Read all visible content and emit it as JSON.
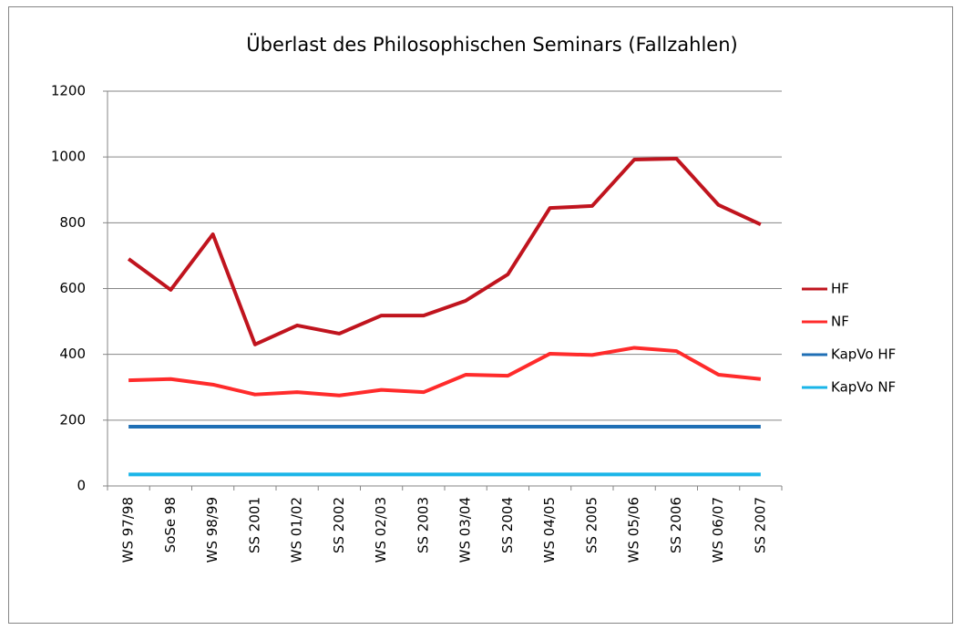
{
  "chart_data": {
    "type": "line",
    "title": "Überlast des Philosophischen  Seminars (Fallzahlen)",
    "categories": [
      "WS 97/98",
      "SoSe 98",
      "WS 98/99",
      "SS 2001",
      "WS 01/02",
      "SS 2002",
      "WS 02/03",
      "SS 2003",
      "WS 03/04",
      "SS 2004",
      "WS 04/05",
      "SS 2005",
      "WS 05/06",
      "SS 2006",
      "WS 06/07",
      "SS 2007"
    ],
    "series": [
      {
        "name": "HF",
        "color": "#c0141e",
        "values": [
          690,
          596,
          765,
          430,
          488,
          463,
          518,
          518,
          563,
          643,
          845,
          851,
          992,
          995,
          854,
          795
        ]
      },
      {
        "name": "NF",
        "color": "#ff2b2b",
        "values": [
          321,
          325,
          308,
          278,
          285,
          275,
          292,
          285,
          338,
          335,
          402,
          398,
          420,
          410,
          338,
          325
        ]
      },
      {
        "name": "KapVo HF",
        "color": "#1f6fb5",
        "values": [
          180,
          180,
          180,
          180,
          180,
          180,
          180,
          180,
          180,
          180,
          180,
          180,
          180,
          180,
          180,
          180
        ]
      },
      {
        "name": "KapVo NF",
        "color": "#1ab5e8",
        "values": [
          35,
          35,
          35,
          35,
          35,
          35,
          35,
          35,
          35,
          35,
          35,
          35,
          35,
          35,
          35,
          35
        ]
      }
    ],
    "ylim": [
      0,
      1200
    ],
    "yticks": [
      0,
      200,
      400,
      600,
      800,
      1000,
      1200
    ],
    "grid": true,
    "legend": "right"
  }
}
